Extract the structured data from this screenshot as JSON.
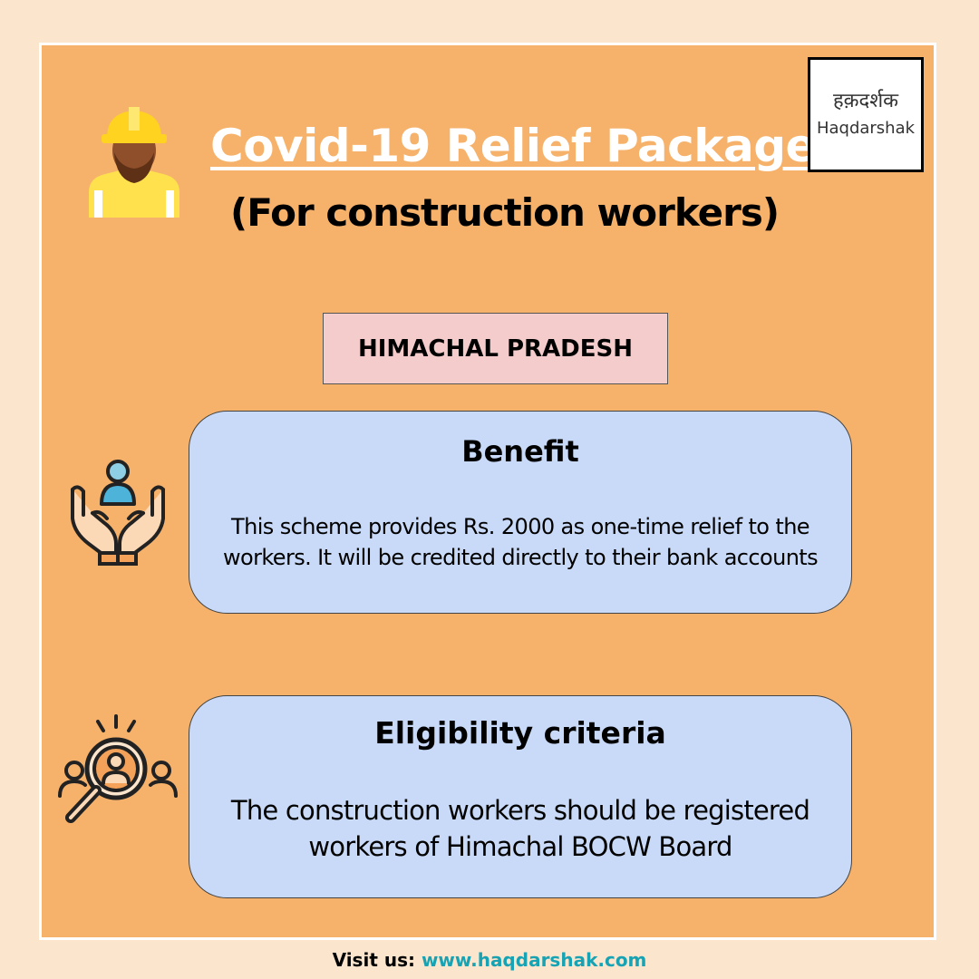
{
  "header": {
    "title": "Covid-19 Relief Package",
    "subtitle": "(For construction workers)"
  },
  "logo": {
    "hindi_text": "हक़दर्शक",
    "english_text": "Haqdarshak"
  },
  "state": "HIMACHAL PRADESH",
  "benefit": {
    "title": "Benefit",
    "text": "This scheme provides Rs. 2000 as one-time relief to the workers. It will be credited directly to their bank accounts"
  },
  "eligibility": {
    "title": "Eligibility criteria",
    "text": "The construction workers should be registered workers of Himachal BOCW Board"
  },
  "footer": {
    "label": "Visit us:",
    "url": "www.haqdarshak.com"
  },
  "icons": {
    "worker": "construction-worker-icon",
    "benefit": "hands-holding-person-icon",
    "eligibility": "magnifier-people-icon"
  },
  "colors": {
    "page_background": "#fce5cd",
    "card_background": "#f6b26b",
    "state_badge": "#f4cccc",
    "info_box": "#c9daf8",
    "footer_link": "#17a3b3",
    "title_text": "#ffffff"
  }
}
